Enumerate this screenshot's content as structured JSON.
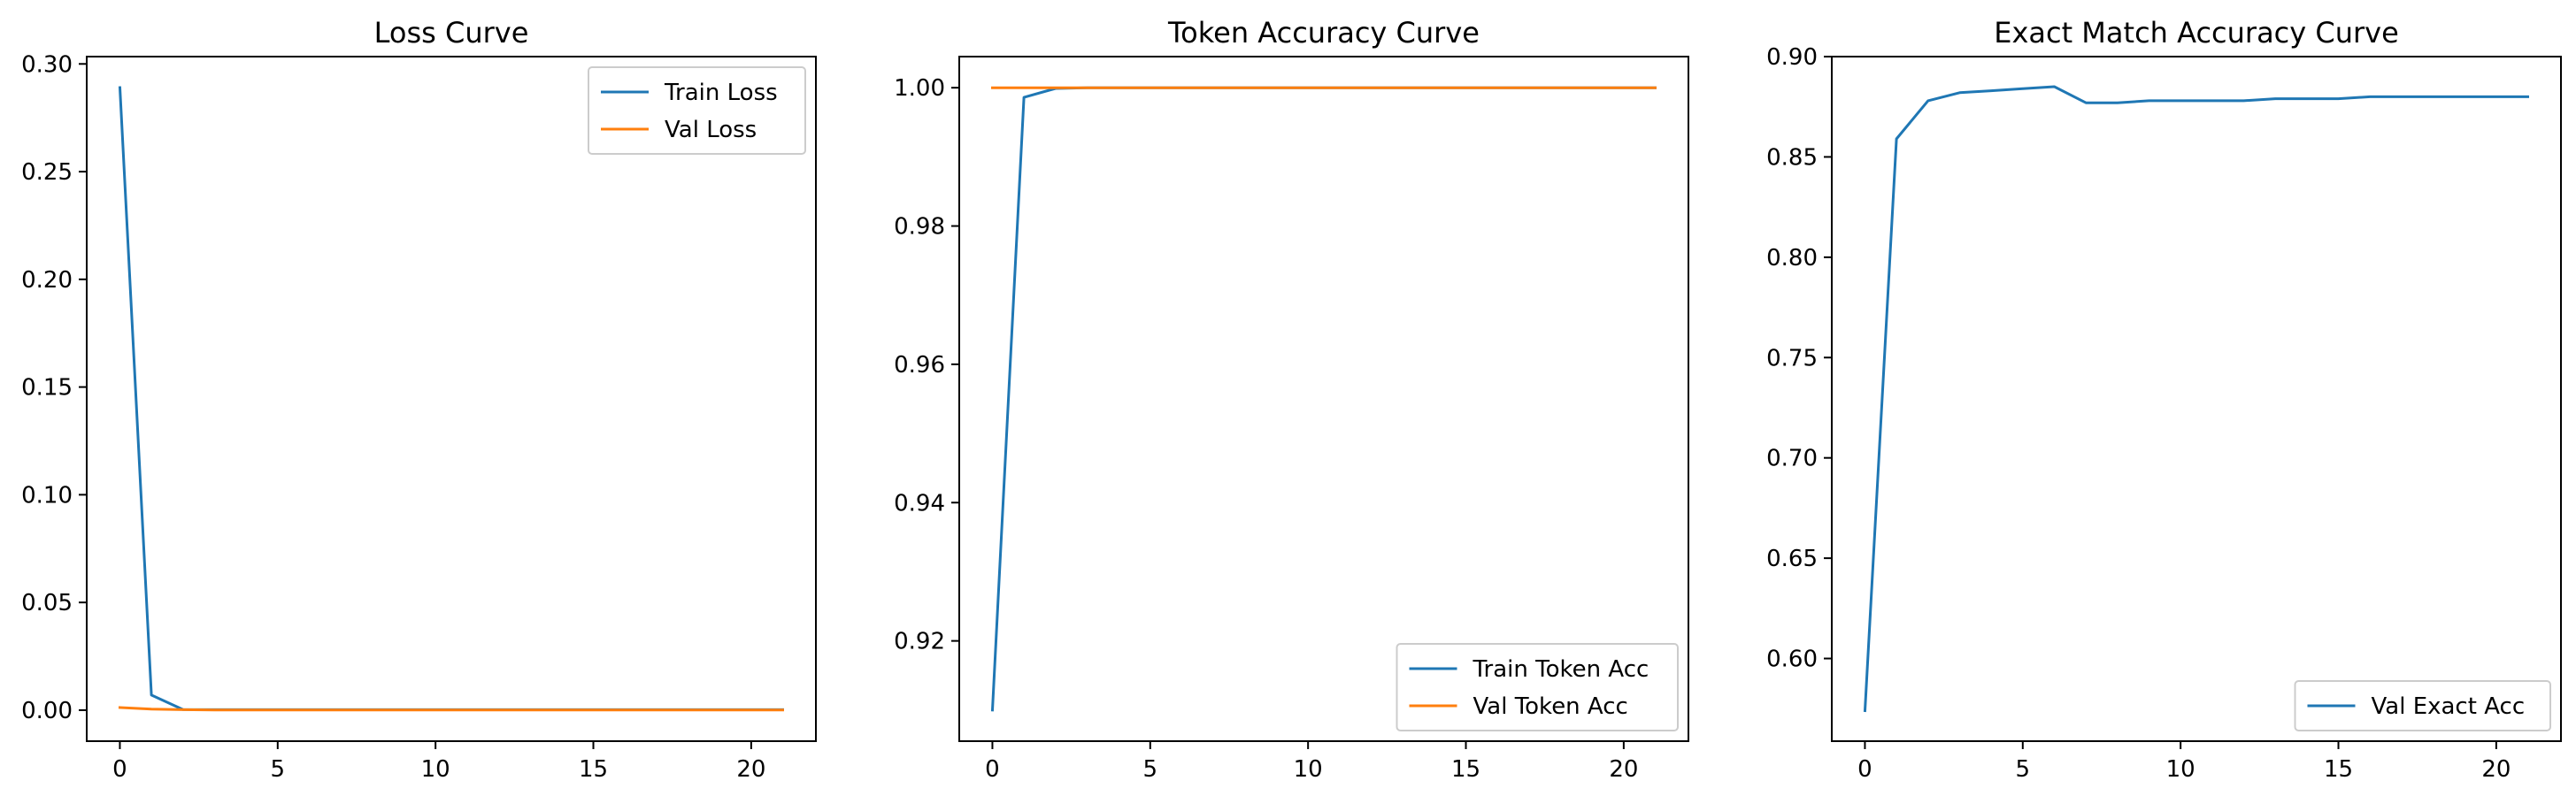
{
  "chart_data": [
    {
      "type": "line",
      "title": "Loss Curve",
      "xlabel": "",
      "ylabel": "",
      "xlim": [
        -1.05,
        22.05
      ],
      "ylim": [
        -0.0144,
        0.3034
      ],
      "xticks": [
        0,
        5,
        10,
        15,
        20
      ],
      "xtick_labels": [
        "0",
        "5",
        "10",
        "15",
        "20"
      ],
      "yticks": [
        0.0,
        0.05,
        0.1,
        0.15,
        0.2,
        0.25,
        0.3
      ],
      "ytick_labels": [
        "0.00",
        "0.05",
        "0.10",
        "0.15",
        "0.20",
        "0.25",
        "0.30"
      ],
      "grid": false,
      "legend_position": "upper right",
      "x": [
        0,
        1,
        2,
        3,
        4,
        5,
        6,
        7,
        8,
        9,
        10,
        11,
        12,
        13,
        14,
        15,
        16,
        17,
        18,
        19,
        20,
        21
      ],
      "series": [
        {
          "name": "Train Loss",
          "color": "#1f77b4",
          "values": [
            0.289,
            0.007,
            0.0003,
            0.0002,
            0.0002,
            0.0002,
            0.0002,
            0.0002,
            0.0002,
            0.0002,
            0.0002,
            0.0002,
            0.0002,
            0.0002,
            0.0002,
            0.0002,
            0.0002,
            0.0002,
            0.0002,
            0.0002,
            0.0002,
            0.0002
          ]
        },
        {
          "name": "Val Loss",
          "color": "#ff7f0e",
          "values": [
            0.0012,
            0.0005,
            0.0002,
            0.0001,
            0.0001,
            0.0001,
            0.0001,
            0.0001,
            0.0001,
            0.0001,
            0.0001,
            0.0001,
            0.0001,
            0.0001,
            0.0001,
            0.0001,
            0.0001,
            0.0001,
            0.0001,
            0.0001,
            0.0001,
            0.0001
          ]
        }
      ]
    },
    {
      "type": "line",
      "title": "Token Accuracy Curve",
      "xlabel": "",
      "ylabel": "",
      "xlim": [
        -1.05,
        22.05
      ],
      "ylim": [
        0.9055,
        1.0045
      ],
      "xticks": [
        0,
        5,
        10,
        15,
        20
      ],
      "xtick_labels": [
        "0",
        "5",
        "10",
        "15",
        "20"
      ],
      "yticks": [
        0.92,
        0.94,
        0.96,
        0.98,
        1.0
      ],
      "ytick_labels": [
        "0.92",
        "0.94",
        "0.96",
        "0.98",
        "1.00"
      ],
      "grid": false,
      "legend_position": "lower right",
      "x": [
        0,
        1,
        2,
        3,
        4,
        5,
        6,
        7,
        8,
        9,
        10,
        11,
        12,
        13,
        14,
        15,
        16,
        17,
        18,
        19,
        20,
        21
      ],
      "series": [
        {
          "name": "Train Token Acc",
          "color": "#1f77b4",
          "values": [
            0.91,
            0.9986,
            0.9999,
            1.0,
            1.0,
            1.0,
            1.0,
            1.0,
            1.0,
            1.0,
            1.0,
            1.0,
            1.0,
            1.0,
            1.0,
            1.0,
            1.0,
            1.0,
            1.0,
            1.0,
            1.0,
            1.0
          ]
        },
        {
          "name": "Val Token Acc",
          "color": "#ff7f0e",
          "values": [
            1.0,
            1.0,
            1.0,
            1.0,
            1.0,
            1.0,
            1.0,
            1.0,
            1.0,
            1.0,
            1.0,
            1.0,
            1.0,
            1.0,
            1.0,
            1.0,
            1.0,
            1.0,
            1.0,
            1.0,
            1.0,
            1.0
          ]
        }
      ]
    },
    {
      "type": "line",
      "title": "Exact Match Accuracy Curve",
      "xlabel": "",
      "ylabel": "",
      "xlim": [
        -1.05,
        22.05
      ],
      "ylim": [
        0.5588,
        0.9
      ],
      "xticks": [
        0,
        5,
        10,
        15,
        20
      ],
      "xtick_labels": [
        "0",
        "5",
        "10",
        "15",
        "20"
      ],
      "yticks": [
        0.6,
        0.65,
        0.7,
        0.75,
        0.8,
        0.85,
        0.9
      ],
      "ytick_labels": [
        "0.60",
        "0.65",
        "0.70",
        "0.75",
        "0.80",
        "0.85",
        "0.90"
      ],
      "grid": false,
      "legend_position": "lower right",
      "x": [
        0,
        1,
        2,
        3,
        4,
        5,
        6,
        7,
        8,
        9,
        10,
        11,
        12,
        13,
        14,
        15,
        16,
        17,
        18,
        19,
        20,
        21
      ],
      "series": [
        {
          "name": "Val Exact Acc",
          "color": "#1f77b4",
          "values": [
            0.574,
            0.859,
            0.878,
            0.882,
            0.883,
            0.884,
            0.885,
            0.877,
            0.877,
            0.878,
            0.878,
            0.878,
            0.878,
            0.879,
            0.879,
            0.879,
            0.88,
            0.88,
            0.88,
            0.88,
            0.88,
            0.88
          ]
        }
      ]
    }
  ]
}
